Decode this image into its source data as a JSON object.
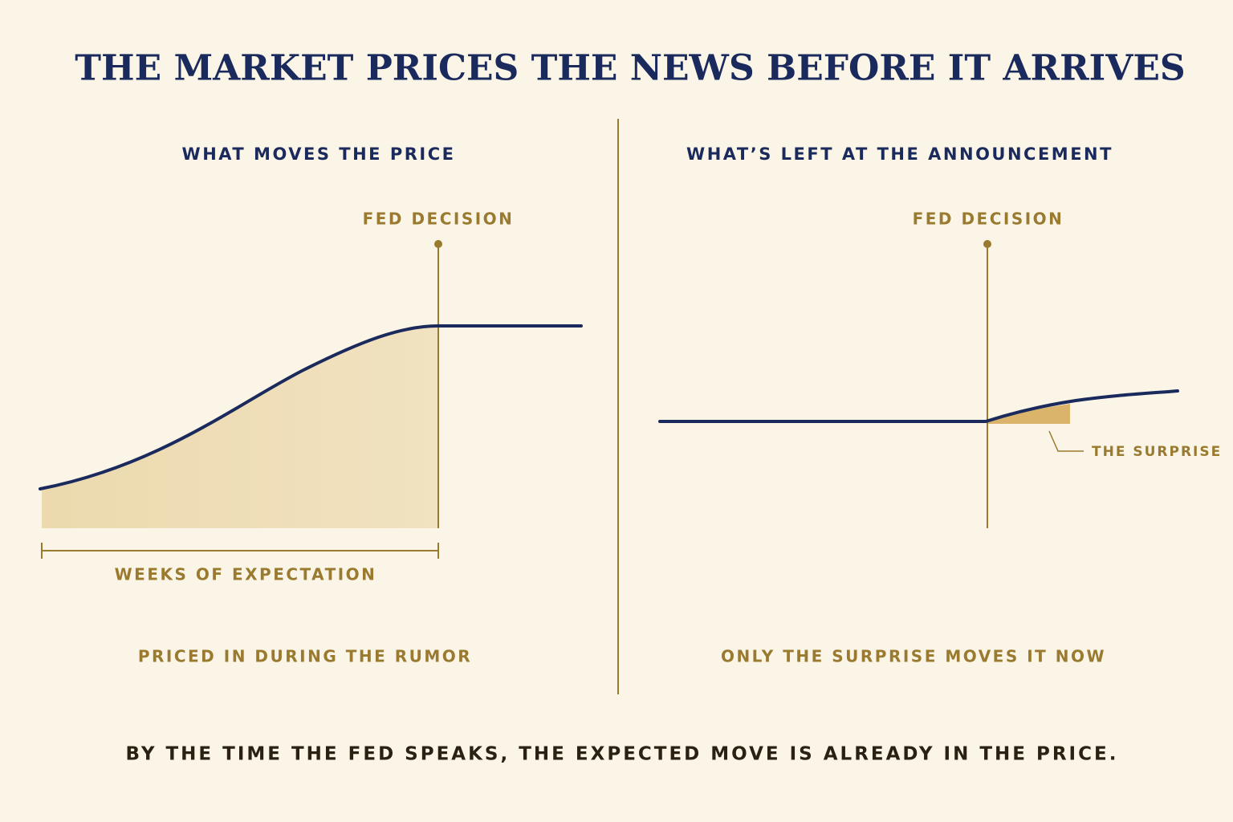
{
  "title": "THE MARKET PRICES THE NEWS BEFORE IT ARRIVES",
  "left_panel": {
    "heading": "WHAT MOVES THE PRICE",
    "marker": "FED DECISION",
    "span_label": "WEEKS OF EXPECTATION",
    "caption": "PRICED IN DURING THE RUMOR"
  },
  "right_panel": {
    "heading": "WHAT’S LEFT AT THE ANNOUNCEMENT",
    "marker": "FED DECISION",
    "callout": "THE SURPRISE",
    "caption": "ONLY THE SURPRISE MOVES IT NOW"
  },
  "footer": "BY THE TIME THE FED SPEAKS, THE EXPECTED MOVE IS ALREADY IN THE PRICE."
}
